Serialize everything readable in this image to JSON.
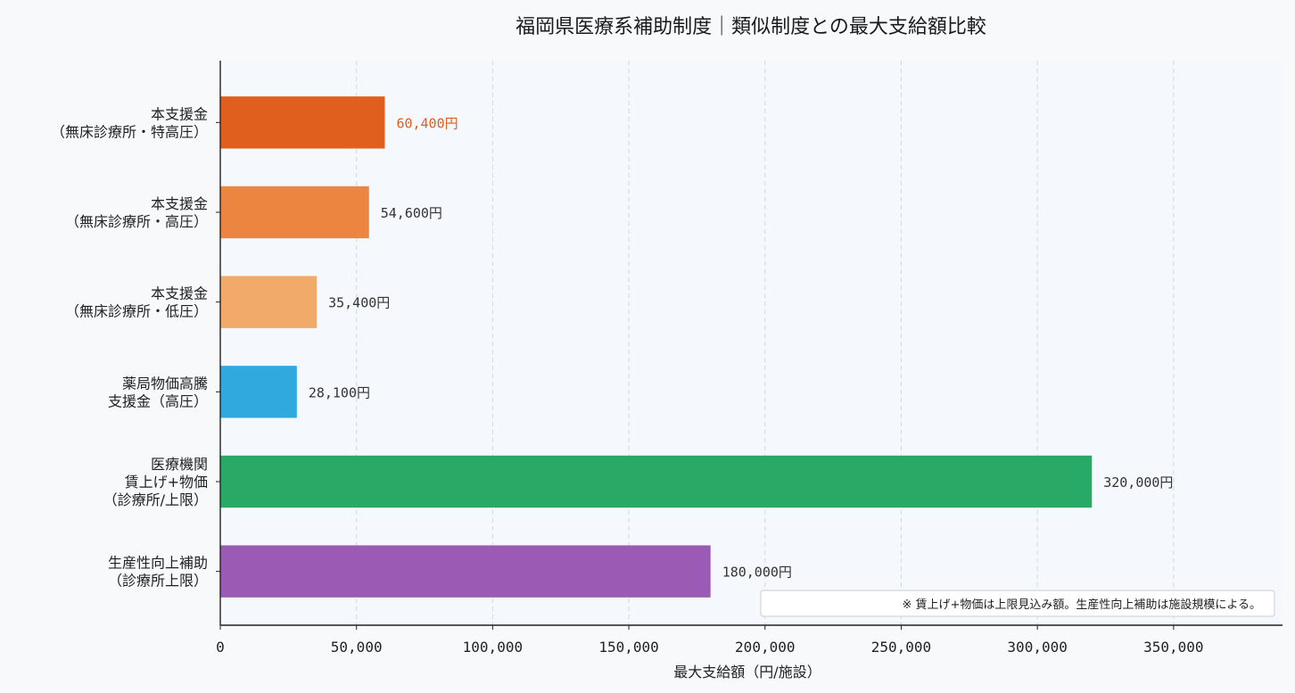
{
  "chart_data": {
    "type": "bar",
    "orientation": "horizontal",
    "title": "福岡県医療系補助制度｜類似制度との最大支給額比較",
    "xlabel": "最大支給額（円/施設）",
    "ylabel": "",
    "xlim": [
      0,
      390000
    ],
    "xticks": [
      0,
      50000,
      100000,
      150000,
      200000,
      250000,
      300000,
      350000
    ],
    "xtick_labels": [
      "0",
      "50,000",
      "100,000",
      "150,000",
      "200,000",
      "250,000",
      "300,000",
      "350,000"
    ],
    "grid": "vertical-dashed",
    "categories": [
      [
        "本支援金",
        "（無床診療所・特高圧）"
      ],
      [
        "本支援金",
        "（無床診療所・高圧）"
      ],
      [
        "本支援金",
        "（無床診療所・低圧）"
      ],
      [
        "薬局物価高騰",
        "支援金（高圧）"
      ],
      [
        "医療機関",
        "賃上げ+物価",
        "（診療所/上限）"
      ],
      [
        "生産性向上補助",
        "（診療所上限）"
      ]
    ],
    "values": [
      60400,
      54600,
      35400,
      28100,
      320000,
      180000
    ],
    "data_labels": [
      "60,400円",
      "54,600円",
      "35,400円",
      "28,100円",
      "320,000円",
      "180,000円"
    ],
    "colors": [
      "#e05e1e",
      "#eb853f",
      "#f2aa6b",
      "#2fa9de",
      "#28aa66",
      "#9b5bb5"
    ],
    "label_colors": [
      "#e05e1e",
      "#333333",
      "#333333",
      "#333333",
      "#333333",
      "#333333"
    ],
    "note": "※ 賃上げ+物価は上限見込み額。生産性向上補助は施設規模による。",
    "note_position": "bottom-right"
  }
}
